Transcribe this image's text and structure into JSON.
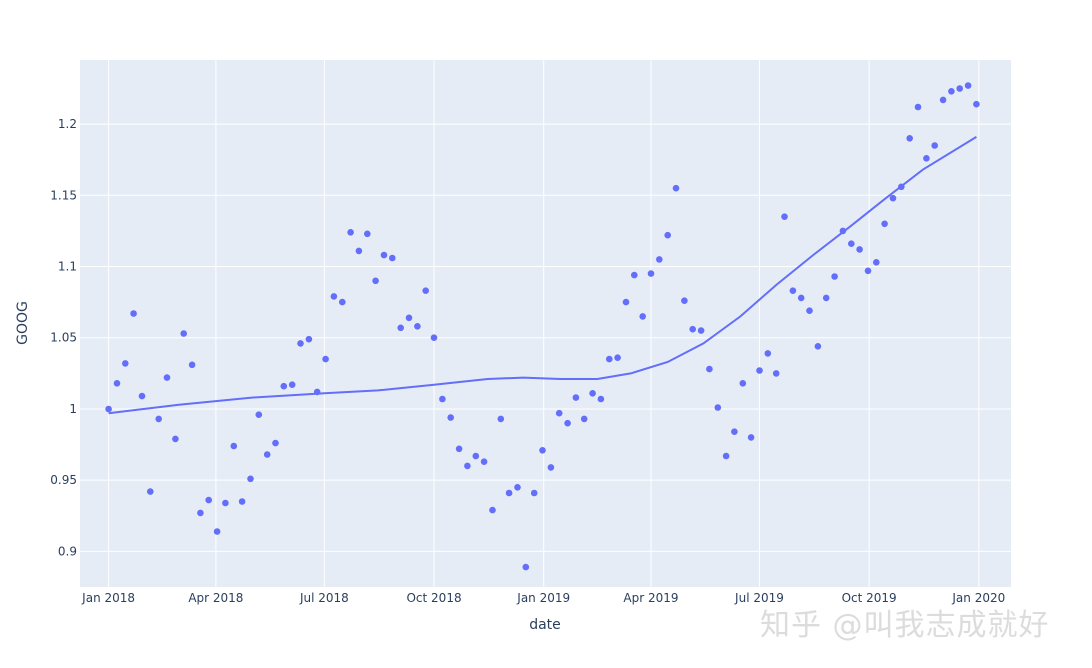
{
  "chart_data": {
    "type": "scatter",
    "xlabel": "date",
    "ylabel": "GOOG",
    "x_ticks": [
      "Jan 2018",
      "Apr 2018",
      "Jul 2018",
      "Oct 2018",
      "Jan 2019",
      "Apr 2019",
      "Jul 2019",
      "Oct 2019",
      "Jan 2020"
    ],
    "y_ticks": [
      "0.9",
      "0.95",
      "1",
      "1.05",
      "1.1",
      "1.15",
      "1.2"
    ],
    "y_tick_values": [
      0.9,
      0.95,
      1.0,
      1.05,
      1.1,
      1.15,
      1.2
    ],
    "ylim": [
      0.875,
      1.245
    ],
    "xlim": [
      "2017-12-08",
      "2020-01-28"
    ],
    "grid": true,
    "series": [
      {
        "mode": "markers",
        "color": "#636efa",
        "points": [
          [
            "2018-01-01",
            1.0
          ],
          [
            "2018-01-08",
            1.018
          ],
          [
            "2018-01-15",
            1.032
          ],
          [
            "2018-01-22",
            1.067
          ],
          [
            "2018-01-29",
            1.009
          ],
          [
            "2018-02-05",
            0.942
          ],
          [
            "2018-02-12",
            0.993
          ],
          [
            "2018-02-19",
            1.022
          ],
          [
            "2018-02-26",
            0.979
          ],
          [
            "2018-03-05",
            1.053
          ],
          [
            "2018-03-12",
            1.031
          ],
          [
            "2018-03-19",
            0.927
          ],
          [
            "2018-03-26",
            0.936
          ],
          [
            "2018-04-02",
            0.914
          ],
          [
            "2018-04-09",
            0.934
          ],
          [
            "2018-04-16",
            0.974
          ],
          [
            "2018-04-23",
            0.935
          ],
          [
            "2018-04-30",
            0.951
          ],
          [
            "2018-05-07",
            0.996
          ],
          [
            "2018-05-14",
            0.968
          ],
          [
            "2018-05-21",
            0.976
          ],
          [
            "2018-05-28",
            1.016
          ],
          [
            "2018-06-04",
            1.017
          ],
          [
            "2018-06-11",
            1.046
          ],
          [
            "2018-06-18",
            1.049
          ],
          [
            "2018-06-25",
            1.012
          ],
          [
            "2018-07-02",
            1.035
          ],
          [
            "2018-07-09",
            1.079
          ],
          [
            "2018-07-16",
            1.075
          ],
          [
            "2018-07-23",
            1.124
          ],
          [
            "2018-07-30",
            1.111
          ],
          [
            "2018-08-06",
            1.123
          ],
          [
            "2018-08-13",
            1.09
          ],
          [
            "2018-08-20",
            1.108
          ],
          [
            "2018-08-27",
            1.106
          ],
          [
            "2018-09-03",
            1.057
          ],
          [
            "2018-09-10",
            1.064
          ],
          [
            "2018-09-17",
            1.058
          ],
          [
            "2018-09-24",
            1.083
          ],
          [
            "2018-10-01",
            1.05
          ],
          [
            "2018-10-08",
            1.007
          ],
          [
            "2018-10-15",
            0.994
          ],
          [
            "2018-10-22",
            0.972
          ],
          [
            "2018-10-29",
            0.96
          ],
          [
            "2018-11-05",
            0.967
          ],
          [
            "2018-11-12",
            0.963
          ],
          [
            "2018-11-19",
            0.929
          ],
          [
            "2018-11-26",
            0.993
          ],
          [
            "2018-12-03",
            0.941
          ],
          [
            "2018-12-10",
            0.945
          ],
          [
            "2018-12-17",
            0.889
          ],
          [
            "2018-12-24",
            0.941
          ],
          [
            "2018-12-31",
            0.971
          ],
          [
            "2019-01-07",
            0.959
          ],
          [
            "2019-01-14",
            0.997
          ],
          [
            "2019-01-21",
            0.99
          ],
          [
            "2019-01-28",
            1.008
          ],
          [
            "2019-02-04",
            0.993
          ],
          [
            "2019-02-11",
            1.011
          ],
          [
            "2019-02-18",
            1.007
          ],
          [
            "2019-02-25",
            1.035
          ],
          [
            "2019-03-04",
            1.036
          ],
          [
            "2019-03-11",
            1.075
          ],
          [
            "2019-03-18",
            1.094
          ],
          [
            "2019-03-25",
            1.065
          ],
          [
            "2019-04-01",
            1.095
          ],
          [
            "2019-04-08",
            1.105
          ],
          [
            "2019-04-15",
            1.122
          ],
          [
            "2019-04-22",
            1.155
          ],
          [
            "2019-04-29",
            1.076
          ],
          [
            "2019-05-06",
            1.056
          ],
          [
            "2019-05-13",
            1.055
          ],
          [
            "2019-05-20",
            1.028
          ],
          [
            "2019-05-27",
            1.001
          ],
          [
            "2019-06-03",
            0.967
          ],
          [
            "2019-06-10",
            0.984
          ],
          [
            "2019-06-17",
            1.018
          ],
          [
            "2019-06-24",
            0.98
          ],
          [
            "2019-07-01",
            1.027
          ],
          [
            "2019-07-08",
            1.039
          ],
          [
            "2019-07-15",
            1.025
          ],
          [
            "2019-07-22",
            1.135
          ],
          [
            "2019-07-29",
            1.083
          ],
          [
            "2019-08-05",
            1.078
          ],
          [
            "2019-08-12",
            1.069
          ],
          [
            "2019-08-19",
            1.044
          ],
          [
            "2019-08-26",
            1.078
          ],
          [
            "2019-09-02",
            1.093
          ],
          [
            "2019-09-09",
            1.125
          ],
          [
            "2019-09-16",
            1.116
          ],
          [
            "2019-09-23",
            1.112
          ],
          [
            "2019-09-30",
            1.097
          ],
          [
            "2019-10-07",
            1.103
          ],
          [
            "2019-10-14",
            1.13
          ],
          [
            "2019-10-21",
            1.148
          ],
          [
            "2019-10-28",
            1.156
          ],
          [
            "2019-11-04",
            1.19
          ],
          [
            "2019-11-11",
            1.212
          ],
          [
            "2019-11-18",
            1.176
          ],
          [
            "2019-11-25",
            1.185
          ],
          [
            "2019-12-02",
            1.217
          ],
          [
            "2019-12-09",
            1.223
          ],
          [
            "2019-12-16",
            1.225
          ],
          [
            "2019-12-23",
            1.227
          ],
          [
            "2019-12-30",
            1.214
          ]
        ]
      },
      {
        "mode": "lines",
        "color": "#636efa",
        "points": [
          [
            "2018-01-01",
            0.997
          ],
          [
            "2018-03-01",
            1.003
          ],
          [
            "2018-05-01",
            1.008
          ],
          [
            "2018-07-01",
            1.011
          ],
          [
            "2018-08-15",
            1.013
          ],
          [
            "2018-10-01",
            1.017
          ],
          [
            "2018-11-15",
            1.021
          ],
          [
            "2018-12-15",
            1.022
          ],
          [
            "2019-01-15",
            1.021
          ],
          [
            "2019-02-15",
            1.021
          ],
          [
            "2019-03-15",
            1.025
          ],
          [
            "2019-04-15",
            1.033
          ],
          [
            "2019-05-15",
            1.046
          ],
          [
            "2019-06-15",
            1.065
          ],
          [
            "2019-07-15",
            1.087
          ],
          [
            "2019-08-15",
            1.108
          ],
          [
            "2019-09-15",
            1.128
          ],
          [
            "2019-10-15",
            1.148
          ],
          [
            "2019-11-15",
            1.168
          ],
          [
            "2019-12-30",
            1.191
          ]
        ]
      }
    ]
  },
  "watermark": "知乎 @叫我志成就好"
}
